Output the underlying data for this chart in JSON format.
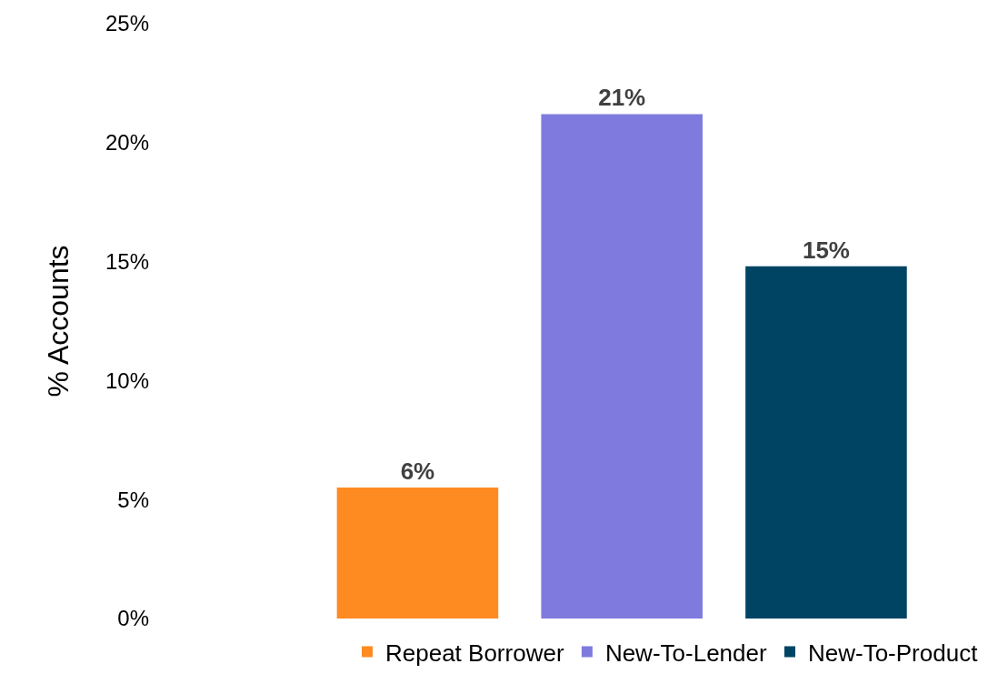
{
  "chart_data": {
    "type": "bar",
    "ylabel": "% Accounts",
    "categories": [
      null
    ],
    "series": [
      {
        "name": "Repeat Borrower",
        "color": "#fe8a22",
        "values": [
          5.5
        ],
        "value_labels": [
          "6%"
        ]
      },
      {
        "name": "New-To-Lender",
        "color": "#7f7bde",
        "values": [
          21.2
        ],
        "value_labels": [
          "21%"
        ]
      },
      {
        "name": "New-To-Product",
        "color": "#004463",
        "values": [
          14.8
        ],
        "value_labels": [
          "15%"
        ]
      }
    ],
    "ylim": [
      0,
      25
    ],
    "yticks": [
      {
        "value": 0,
        "label": "0%"
      },
      {
        "value": 5,
        "label": "5%"
      },
      {
        "value": 10,
        "label": "10%"
      },
      {
        "value": 15,
        "label": "15%"
      },
      {
        "value": 20,
        "label": "20%"
      },
      {
        "value": 25,
        "label": "25%"
      }
    ],
    "grid": false,
    "legend": "bottom"
  }
}
